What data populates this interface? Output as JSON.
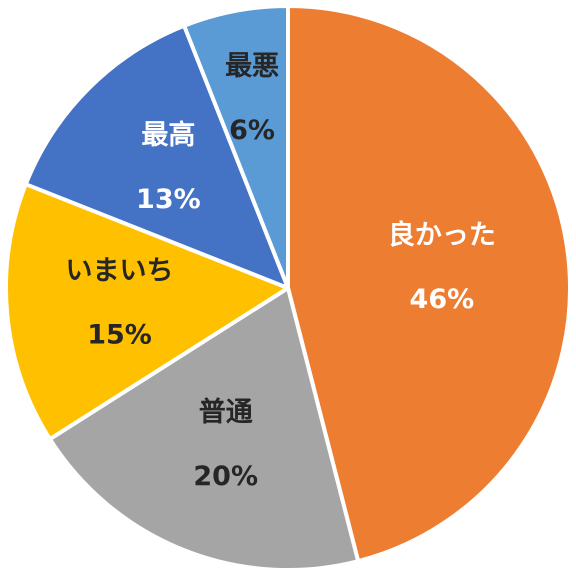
{
  "chart_data": {
    "type": "pie",
    "categories": [
      "良かった",
      "普通",
      "いまいち",
      "最高",
      "最悪"
    ],
    "values": [
      46,
      20,
      15,
      13,
      6
    ],
    "value_labels": [
      "46%",
      "20%",
      "15%",
      "13%",
      "6%"
    ],
    "colors": [
      "#ed7d31",
      "#a5a5a5",
      "#ffc000",
      "#4472c4",
      "#5b9bd5"
    ],
    "label_colors": [
      "#ffffff",
      "#262626",
      "#262626",
      "#ffffff",
      "#262626"
    ],
    "start_angle": 0,
    "direction": "clockwise"
  }
}
